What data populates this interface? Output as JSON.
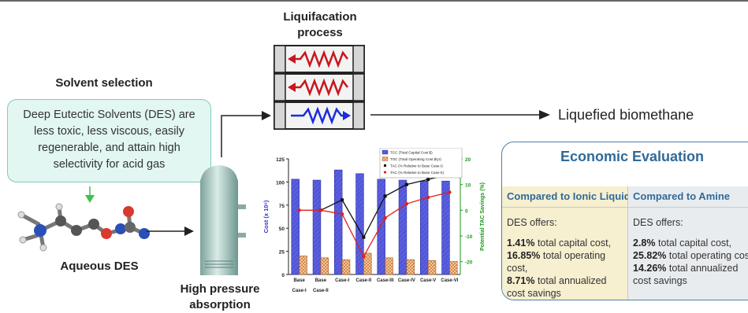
{
  "solvent_title": "Solvent selection",
  "des_text": "Deep Eutectic Solvents (DES) are less toxic, less viscous, easily regenerable, and attain high selectivity for acid gas",
  "aqueous_label": "Aqueous DES",
  "liquefaction_title": "Liquifacation process",
  "absorption_label": "High pressure absorption",
  "output_label": "Liquefied biomethane",
  "econ": {
    "title": "Economic Evaluation",
    "ionic": {
      "header": "Compared to Ionic Liquid",
      "offers": "DES offers:",
      "v1": "1.41%",
      "t1": "total capital cost,",
      "v2": "16.85%",
      "t2": "total operating cost,",
      "v3": "8.71%",
      "t3": "total annualized cost savings"
    },
    "amine": {
      "header": "Compared to Amine",
      "offers": "DES offers:",
      "v1": "2.8%",
      "t1": "total capital cost,",
      "v2": "25.82%",
      "t2": "total operating cost,",
      "v3": "14.26%",
      "t3": "total annualized cost savings"
    }
  },
  "chart_data": {
    "type": "bar",
    "categories": [
      "Base Case-I",
      "Base Case-II",
      "Case-I",
      "Case-II",
      "Case-III",
      "Case-IV",
      "Case-V",
      "Case-VI"
    ],
    "category_lines": [
      [
        "Base",
        "Case-I"
      ],
      [
        "Base",
        "Case-II"
      ],
      [
        "Case-I"
      ],
      [
        "Case-II"
      ],
      [
        "Case-III"
      ],
      [
        "Case-IV"
      ],
      [
        "Case-V"
      ],
      [
        "Case-VI"
      ]
    ],
    "series": [
      {
        "name": "TCC (Total Capital Cost $)",
        "axis": "left",
        "kind": "bar",
        "color": "#5a5ee0",
        "values": [
          103,
          102,
          113,
          109,
          103,
          102,
          101,
          101
        ]
      },
      {
        "name": "TOC (Total Operating Cost $/yr)",
        "axis": "left",
        "kind": "bar",
        "color": "#d9894a",
        "values": [
          20,
          18,
          16,
          23,
          18,
          16,
          15,
          14
        ]
      },
      {
        "name": "TAC (% Relative to Base Case-I)",
        "axis": "right",
        "kind": "line",
        "color": "#111111",
        "values": [
          null,
          0,
          4,
          -10.5,
          5.5,
          10,
          12,
          14
        ]
      },
      {
        "name": "TAC (% Relative to Base Case-II)",
        "axis": "right",
        "kind": "line",
        "color": "#e0201c",
        "values": [
          0,
          0,
          -1.5,
          -18,
          -3,
          2.5,
          5,
          7
        ]
      }
    ],
    "ylabel": "Cost (x 10⁶)",
    "y2label": "Potential  TAC Savings (%)",
    "ylim": [
      0,
      125
    ],
    "yticks": [
      0,
      25,
      50,
      75,
      100,
      125
    ],
    "y2lim": [
      -25,
      20
    ],
    "y2ticks": [
      -20,
      -10,
      0,
      10,
      20
    ],
    "grid": false,
    "legend_position": "top-right"
  }
}
